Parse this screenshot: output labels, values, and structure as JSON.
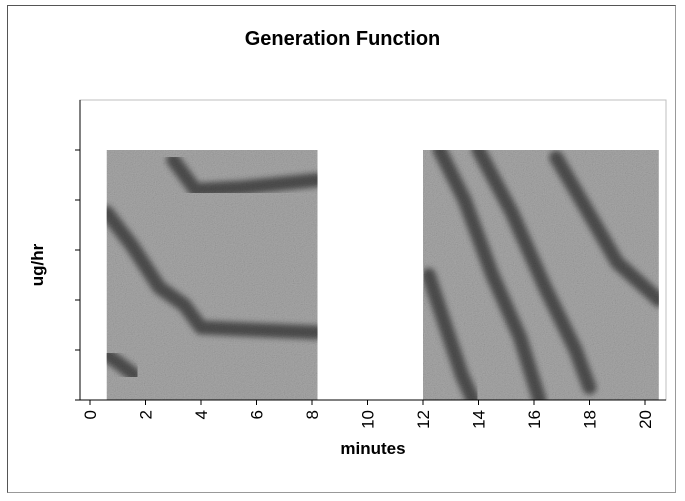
{
  "chart_data": {
    "type": "heatmap",
    "title": "Generation Function",
    "xlabel": "minutes",
    "ylabel": "ug/hr",
    "xlim": [
      0,
      21
    ],
    "x_ticks": [
      "0",
      "2",
      "4",
      "6",
      "8",
      "10",
      "12",
      "14",
      "16",
      "18",
      "20"
    ],
    "y_tick_count": 6,
    "y_tick_labels_shown": false,
    "grid": false,
    "legend": "none",
    "colors": {
      "background": "#ffffff",
      "block_fill": "#a9a9a9",
      "streak": "#3f3f3f",
      "axis": "#000000"
    },
    "blocks": [
      {
        "x_range": [
          0.6,
          8.2
        ],
        "streaks": [
          {
            "points": [
              [
                0.6,
                0.75
              ],
              [
                1.5,
                0.62
              ],
              [
                2.5,
                0.45
              ],
              [
                3.4,
                0.38
              ],
              [
                4.0,
                0.29
              ],
              [
                6.0,
                0.28
              ],
              [
                8.2,
                0.27
              ]
            ]
          },
          {
            "points": [
              [
                3.0,
                0.96
              ],
              [
                3.8,
                0.84
              ],
              [
                5.5,
                0.85
              ],
              [
                8.2,
                0.88
              ]
            ]
          },
          {
            "points": [
              [
                0.6,
                0.18
              ],
              [
                1.0,
                0.15
              ],
              [
                1.6,
                0.1
              ]
            ]
          }
        ]
      },
      {
        "x_range": [
          12.0,
          20.5
        ],
        "streaks": [
          {
            "points": [
              [
                12.2,
                0.5
              ],
              [
                12.8,
                0.3
              ],
              [
                13.4,
                0.1
              ],
              [
                13.8,
                0.0
              ]
            ]
          },
          {
            "points": [
              [
                12.6,
                1.0
              ],
              [
                13.5,
                0.8
              ],
              [
                14.5,
                0.5
              ],
              [
                15.5,
                0.25
              ],
              [
                16.2,
                0.0
              ]
            ]
          },
          {
            "points": [
              [
                14.0,
                1.0
              ],
              [
                15.2,
                0.75
              ],
              [
                16.4,
                0.45
              ],
              [
                17.5,
                0.2
              ],
              [
                18.0,
                0.05
              ]
            ]
          },
          {
            "points": [
              [
                16.8,
                0.97
              ],
              [
                17.8,
                0.78
              ],
              [
                19.0,
                0.55
              ],
              [
                20.5,
                0.4
              ]
            ]
          }
        ]
      }
    ]
  }
}
